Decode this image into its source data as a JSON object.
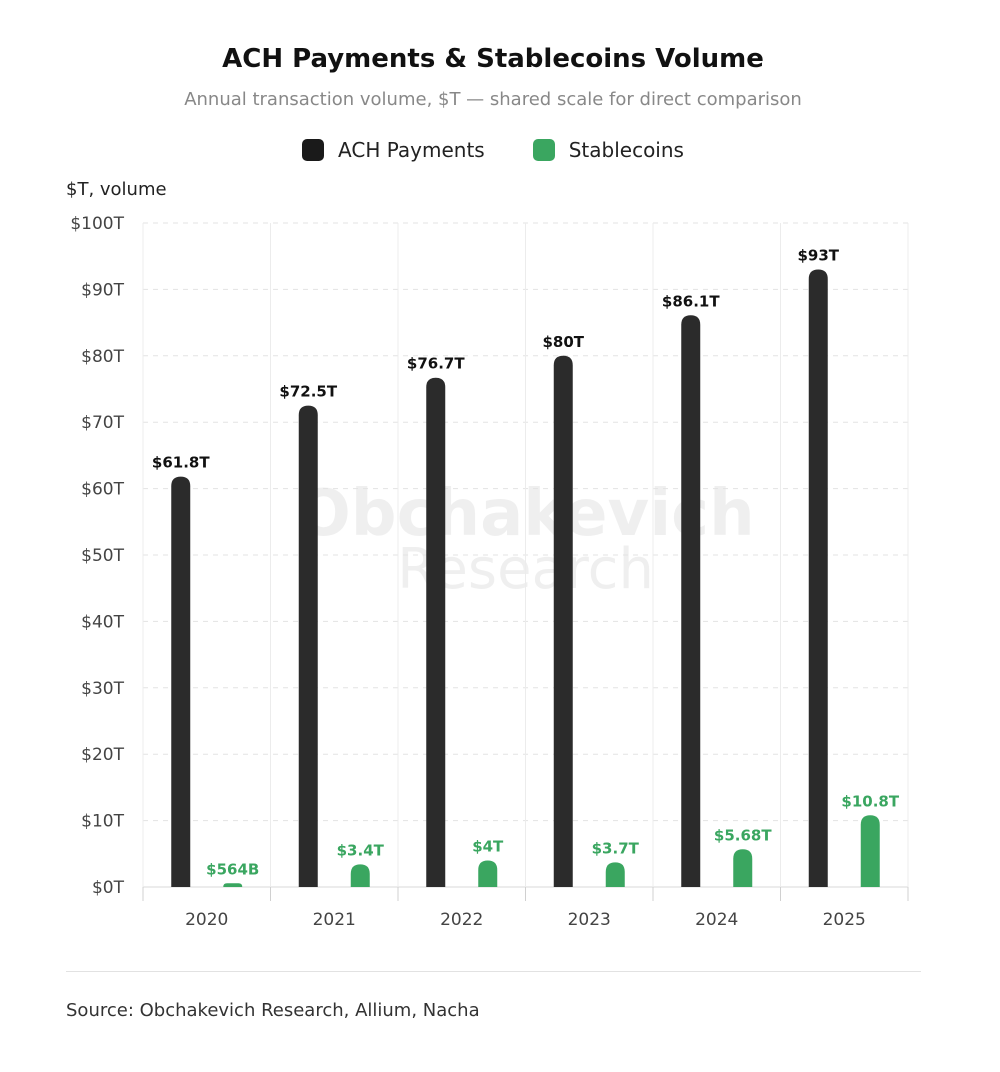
{
  "chart_data": {
    "type": "bar",
    "title": "ACH Payments & Stablecoins Volume",
    "subtitle": "Annual transaction volume, $T — shared scale for direct comparison",
    "ylabel": "$T, volume",
    "xlabel": "",
    "categories": [
      "2020",
      "2021",
      "2022",
      "2023",
      "2024",
      "2025"
    ],
    "ylim": [
      0,
      100
    ],
    "yticks": [
      0,
      10,
      20,
      30,
      40,
      50,
      60,
      70,
      80,
      90,
      100
    ],
    "ytick_labels": [
      "$0T",
      "$10T",
      "$20T",
      "$30T",
      "$40T",
      "$50T",
      "$60T",
      "$70T",
      "$80T",
      "$90T",
      "$100T"
    ],
    "series": [
      {
        "name": "ACH Payments",
        "color": "#2b2b2b",
        "values": [
          61.8,
          72.5,
          76.7,
          80,
          86.1,
          93
        ],
        "labels": [
          "$61.8T",
          "$72.5T",
          "$76.7T",
          "$80T",
          "$86.1T",
          "$93T"
        ]
      },
      {
        "name": "Stablecoins",
        "color": "#3aa660",
        "values": [
          0.564,
          3.4,
          4,
          3.7,
          5.68,
          10.8
        ],
        "labels": [
          "$564B",
          "$3.4T",
          "$4T",
          "$3.7T",
          "$5.68T",
          "$10.8T"
        ]
      }
    ],
    "grid": true,
    "legend_position": "top-center",
    "watermark": [
      "Obchakevich",
      "Research"
    ]
  },
  "footer": {
    "source": "Source: Obchakevich Research, Allium, Nacha"
  }
}
